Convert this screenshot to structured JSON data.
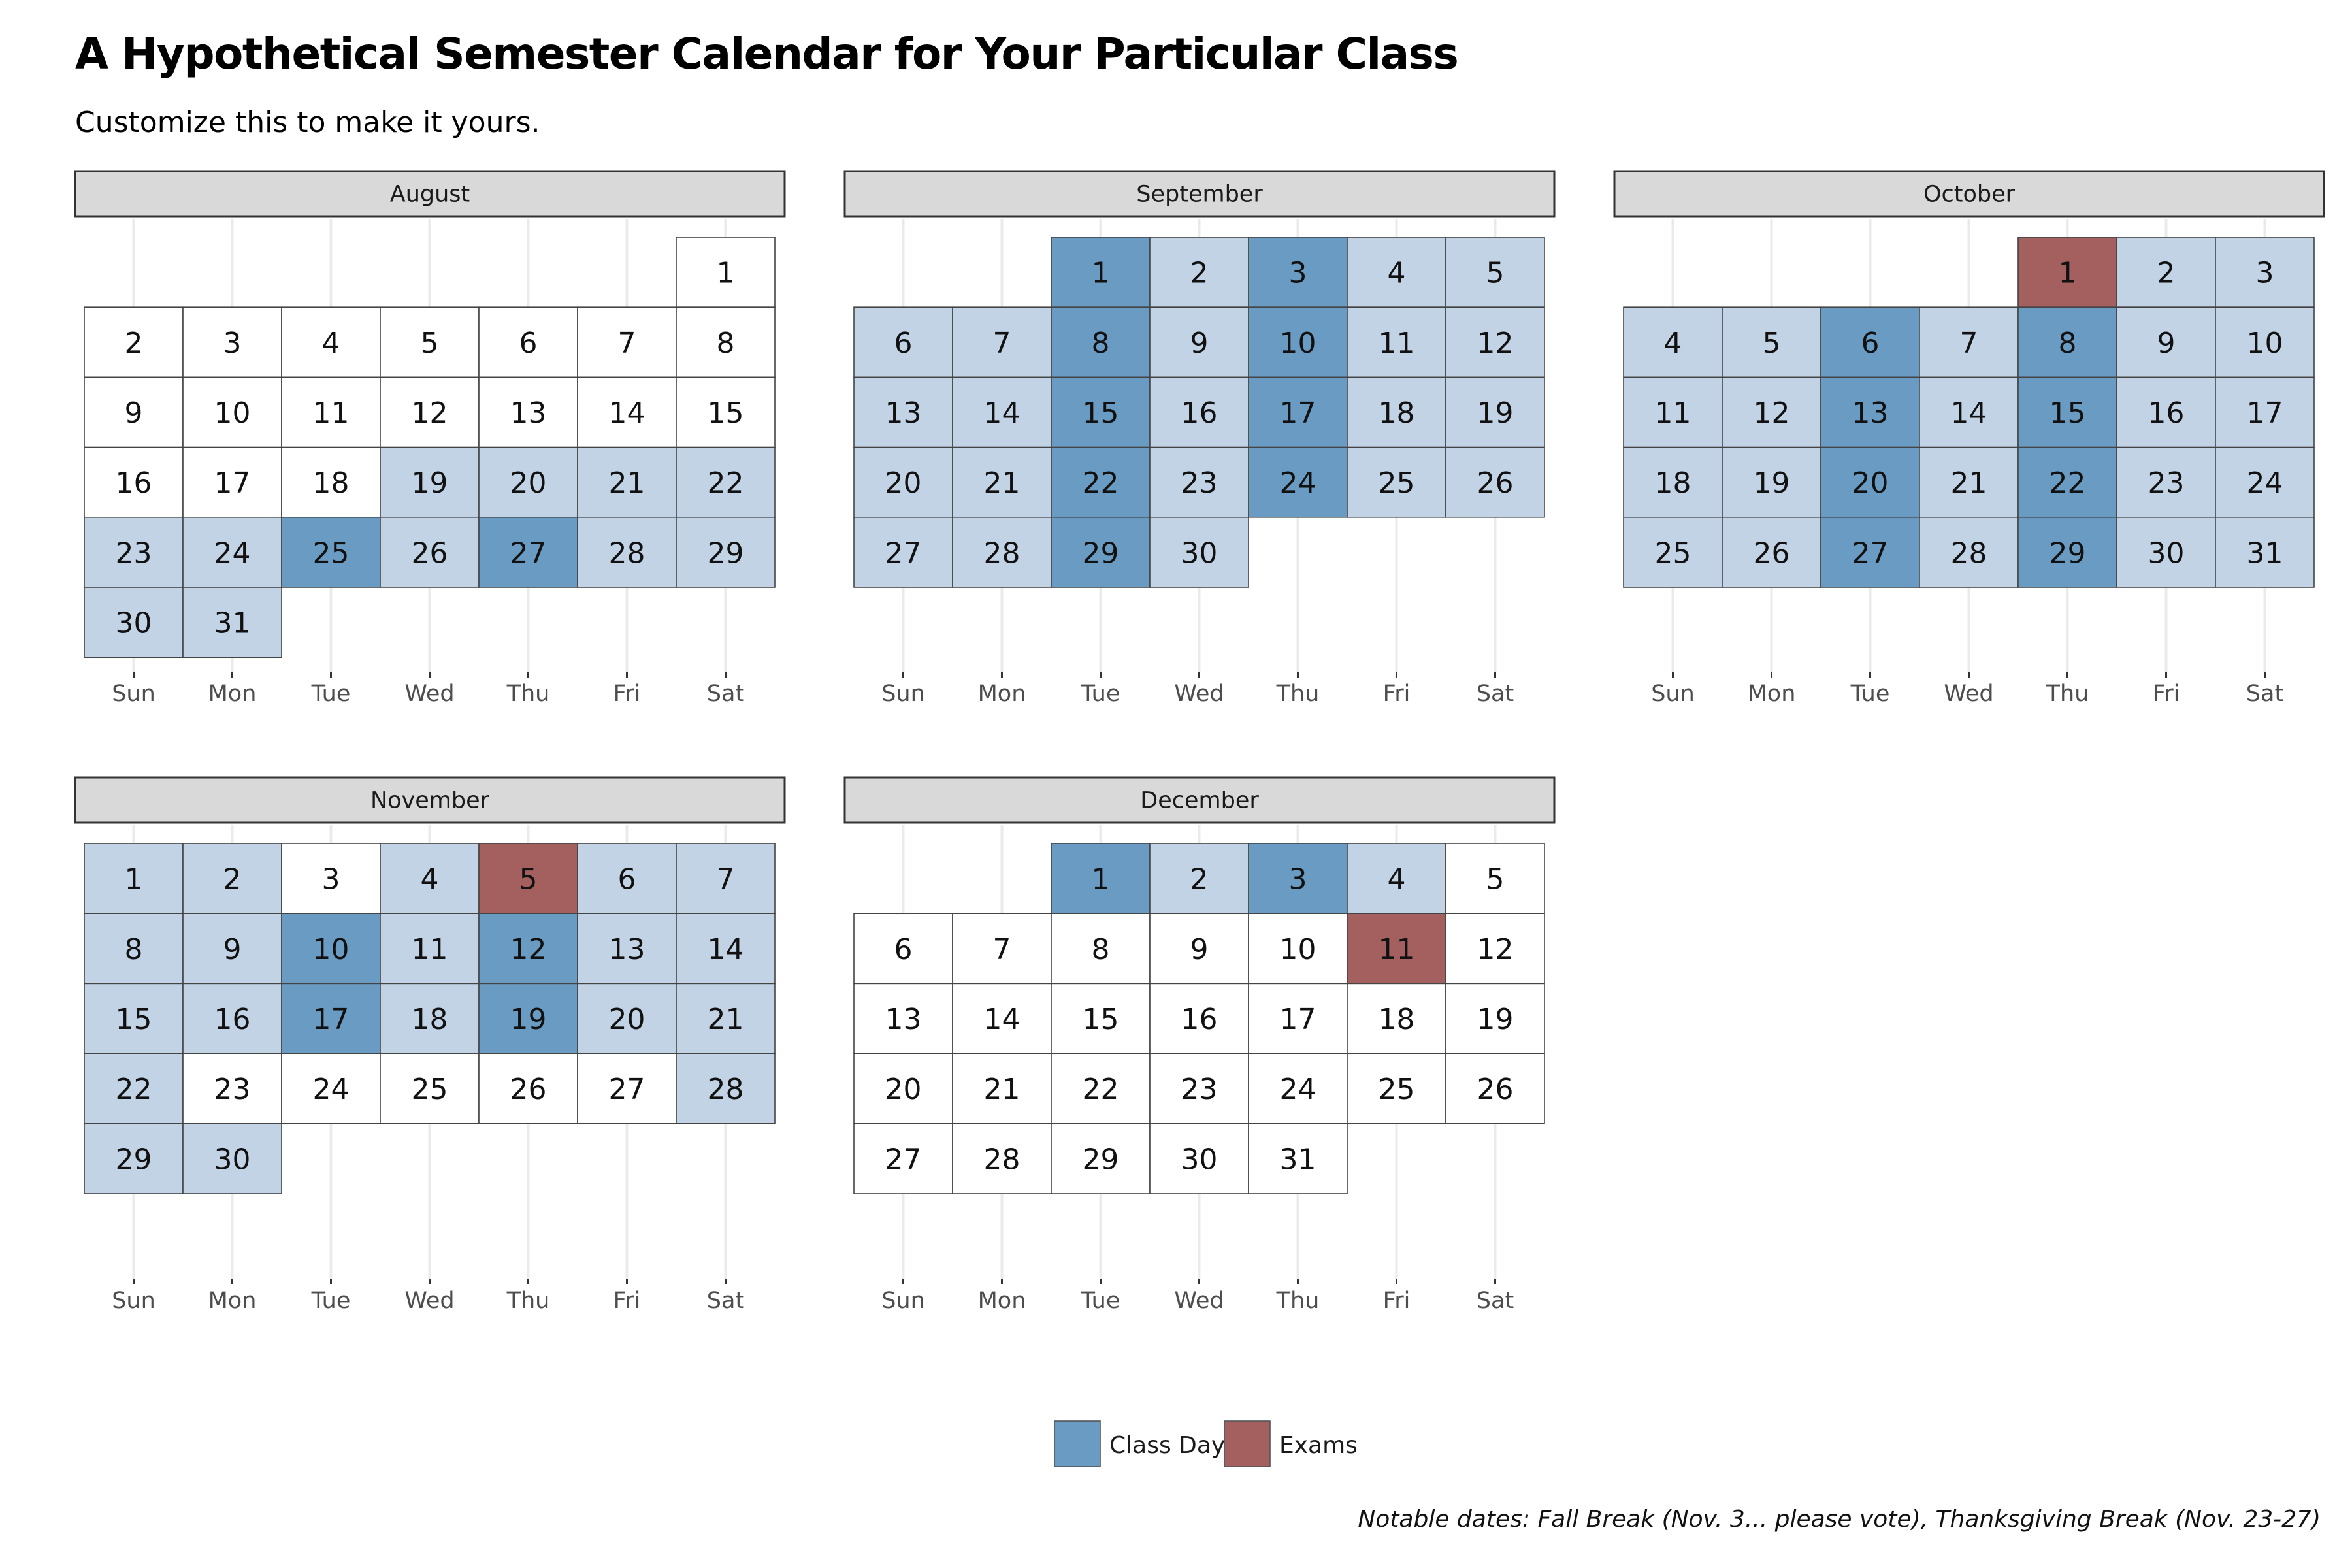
{
  "title": "A Hypothetical Semester Calendar for Your Particular Class",
  "subtitle": "Customize this to make it yours.",
  "caption": "Notable dates: Fall Break (Nov. 3... please vote), Thanksgiving Break (Nov. 23-27)",
  "chart_data": {
    "type": "heatmap",
    "weekdays": [
      "Sun",
      "Mon",
      "Tue",
      "Wed",
      "Thu",
      "Fri",
      "Sat"
    ],
    "colors": {
      "class_day": "#6a9bc3",
      "exams": "#a45f5f",
      "semester": "#c3d3e6",
      "none": "#ffffff"
    },
    "legend": [
      {
        "key": "class_day",
        "label": "Class Day"
      },
      {
        "key": "exams",
        "label": "Exams"
      }
    ],
    "months": [
      {
        "name": "August",
        "first_weekday": 6,
        "days": 31,
        "class_days": [
          25,
          27
        ],
        "exam_days": [],
        "semester_days": [
          19,
          20,
          21,
          22,
          23,
          24,
          25,
          26,
          27,
          28,
          29,
          30,
          31
        ]
      },
      {
        "name": "September",
        "first_weekday": 2,
        "days": 30,
        "class_days": [
          1,
          3,
          8,
          10,
          15,
          17,
          22,
          24,
          29
        ],
        "exam_days": [],
        "semester_days": [
          1,
          2,
          3,
          4,
          5,
          6,
          7,
          8,
          9,
          10,
          11,
          12,
          13,
          14,
          15,
          16,
          17,
          18,
          19,
          20,
          21,
          22,
          23,
          24,
          25,
          26,
          27,
          28,
          29,
          30
        ]
      },
      {
        "name": "October",
        "first_weekday": 4,
        "days": 31,
        "class_days": [
          6,
          8,
          13,
          15,
          20,
          22,
          27,
          29
        ],
        "exam_days": [
          1
        ],
        "semester_days": [
          1,
          2,
          3,
          4,
          5,
          6,
          7,
          8,
          9,
          10,
          11,
          12,
          13,
          14,
          15,
          16,
          17,
          18,
          19,
          20,
          21,
          22,
          23,
          24,
          25,
          26,
          27,
          28,
          29,
          30,
          31
        ]
      },
      {
        "name": "November",
        "first_weekday": 0,
        "days": 30,
        "class_days": [
          10,
          12,
          17,
          19
        ],
        "exam_days": [
          5
        ],
        "semester_days": [
          1,
          2,
          4,
          5,
          6,
          7,
          8,
          9,
          10,
          11,
          12,
          13,
          14,
          15,
          16,
          17,
          18,
          19,
          20,
          21,
          22,
          28,
          29,
          30
        ]
      },
      {
        "name": "December",
        "first_weekday": 2,
        "days": 31,
        "class_days": [
          1,
          3
        ],
        "exam_days": [
          11
        ],
        "semester_days": [
          1,
          2,
          3,
          4
        ]
      }
    ]
  }
}
